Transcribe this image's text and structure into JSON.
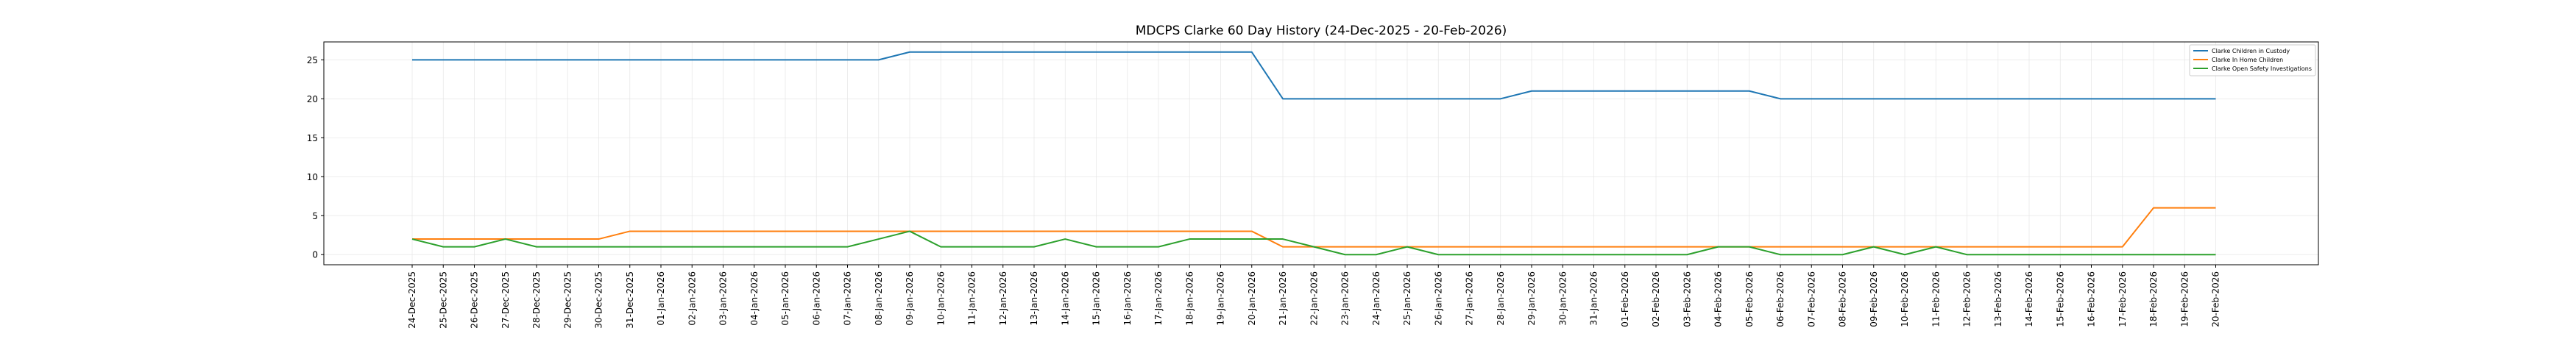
{
  "chart_data": {
    "type": "line",
    "title": "MDCPS Clarke 60 Day History (24-Dec-2025 - 20-Feb-2026)",
    "xlabel": "",
    "ylabel": "",
    "ylim": [
      -1.3,
      27.3
    ],
    "yticks": [
      0,
      5,
      10,
      15,
      20,
      25
    ],
    "grid": true,
    "legend_position": "top-right",
    "x": [
      "24-Dec-2025",
      "25-Dec-2025",
      "26-Dec-2025",
      "27-Dec-2025",
      "28-Dec-2025",
      "29-Dec-2025",
      "30-Dec-2025",
      "31-Dec-2025",
      "01-Jan-2026",
      "02-Jan-2026",
      "03-Jan-2026",
      "04-Jan-2026",
      "05-Jan-2026",
      "06-Jan-2026",
      "07-Jan-2026",
      "08-Jan-2026",
      "09-Jan-2026",
      "10-Jan-2026",
      "11-Jan-2026",
      "12-Jan-2026",
      "13-Jan-2026",
      "14-Jan-2026",
      "15-Jan-2026",
      "16-Jan-2026",
      "17-Jan-2026",
      "18-Jan-2026",
      "19-Jan-2026",
      "20-Jan-2026",
      "21-Jan-2026",
      "22-Jan-2026",
      "23-Jan-2026",
      "24-Jan-2026",
      "25-Jan-2026",
      "26-Jan-2026",
      "27-Jan-2026",
      "28-Jan-2026",
      "29-Jan-2026",
      "30-Jan-2026",
      "31-Jan-2026",
      "01-Feb-2026",
      "02-Feb-2026",
      "03-Feb-2026",
      "04-Feb-2026",
      "05-Feb-2026",
      "06-Feb-2026",
      "07-Feb-2026",
      "08-Feb-2026",
      "09-Feb-2026",
      "10-Feb-2026",
      "11-Feb-2026",
      "12-Feb-2026",
      "13-Feb-2026",
      "14-Feb-2026",
      "15-Feb-2026",
      "16-Feb-2026",
      "17-Feb-2026",
      "18-Feb-2026",
      "19-Feb-2026",
      "20-Feb-2026"
    ],
    "series": [
      {
        "name": "Clarke Children in Custody",
        "color": "#1f77b4",
        "values": [
          25,
          25,
          25,
          25,
          25,
          25,
          25,
          25,
          25,
          25,
          25,
          25,
          25,
          25,
          25,
          25,
          26,
          26,
          26,
          26,
          26,
          26,
          26,
          26,
          26,
          26,
          26,
          26,
          20,
          20,
          20,
          20,
          20,
          20,
          20,
          20,
          21,
          21,
          21,
          21,
          21,
          21,
          21,
          21,
          20,
          20,
          20,
          20,
          20,
          20,
          20,
          20,
          20,
          20,
          20,
          20,
          20,
          20,
          20
        ]
      },
      {
        "name": "Clarke In Home Children",
        "color": "#ff7f0e",
        "values": [
          2,
          2,
          2,
          2,
          2,
          2,
          2,
          3,
          3,
          3,
          3,
          3,
          3,
          3,
          3,
          3,
          3,
          3,
          3,
          3,
          3,
          3,
          3,
          3,
          3,
          3,
          3,
          3,
          1,
          1,
          1,
          1,
          1,
          1,
          1,
          1,
          1,
          1,
          1,
          1,
          1,
          1,
          1,
          1,
          1,
          1,
          1,
          1,
          1,
          1,
          1,
          1,
          1,
          1,
          1,
          1,
          6,
          6,
          6
        ]
      },
      {
        "name": "Clarke Open Safety Investigations",
        "color": "#2ca02c",
        "values": [
          2,
          1,
          1,
          2,
          1,
          1,
          1,
          1,
          1,
          1,
          1,
          1,
          1,
          1,
          1,
          2,
          3,
          1,
          1,
          1,
          1,
          2,
          1,
          1,
          1,
          2,
          2,
          2,
          2,
          1,
          0,
          0,
          1,
          0,
          0,
          0,
          0,
          0,
          0,
          0,
          0,
          0,
          1,
          1,
          0,
          0,
          0,
          1,
          0,
          1,
          0,
          0,
          0,
          0,
          0,
          0,
          0,
          0,
          0
        ]
      }
    ]
  }
}
